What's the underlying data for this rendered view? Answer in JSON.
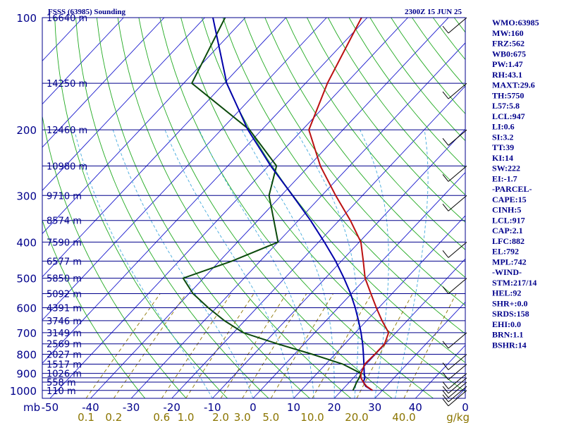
{
  "title_left": "FSSS (63985) Sounding",
  "title_right": "2300Z 15 JUN 25",
  "colors": {
    "frame": "#00008b",
    "isobar": "#00008b",
    "isotherm": "#1a1acd",
    "dry_adiabat": "#22aa22",
    "moist_adiabat": "#44aadd",
    "mixing_ratio": "#8b7500",
    "temperature": "#bb1111",
    "dewpoint": "#0b4a0b",
    "parcel": "#0000aa",
    "wind": "#000000"
  },
  "chart_data": {
    "type": "skew-t",
    "pressure_unit_label": "mb",
    "pressure_levels": [
      100,
      150,
      200,
      250,
      300,
      350,
      400,
      450,
      500,
      550,
      600,
      650,
      700,
      750,
      800,
      850,
      900,
      925,
      950,
      1000
    ],
    "pressure_tick_labels": [
      "100",
      "200",
      "300",
      "400",
      "500",
      "600",
      "700",
      "800",
      "900",
      "1000"
    ],
    "heights_labels": [
      "16640 m",
      "14250 m",
      "12460 m",
      "10980 m",
      "9710 m",
      "8574 m",
      "7590 m",
      "6577 m",
      "5850 m",
      "5092 m",
      "4391 m",
      "3746 m",
      "3149 m",
      "2569 m",
      "2027 m",
      "1517 m",
      "1026 m",
      "558 m",
      "110 m"
    ],
    "temperature_ticks": [
      "-50",
      "-40",
      "-30",
      "-20",
      "-10",
      "0",
      "10",
      "20",
      "30",
      "40",
      "0"
    ],
    "mixing_ratio_ticks": [
      "0.1",
      "0.2",
      "0.6",
      "1.0",
      "2.0",
      "3.0",
      "5.0",
      "10.0",
      "20.0",
      "40.0"
    ],
    "mixing_ratio_unit": "g/kg",
    "temperature_profile": [
      {
        "p": 1000,
        "t": 27.6
      },
      {
        "p": 975,
        "t": 25.2
      },
      {
        "p": 950,
        "t": 23.4
      },
      {
        "p": 925,
        "t": 21.8
      },
      {
        "p": 900,
        "t": 20.8
      },
      {
        "p": 850,
        "t": 19.6
      },
      {
        "p": 800,
        "t": 19.8
      },
      {
        "p": 750,
        "t": 19.8
      },
      {
        "p": 700,
        "t": 18.2
      },
      {
        "p": 650,
        "t": 13.8
      },
      {
        "p": 600,
        "t": 9.4
      },
      {
        "p": 550,
        "t": 4.8
      },
      {
        "p": 500,
        "t": -0.2
      },
      {
        "p": 450,
        "t": -4.6
      },
      {
        "p": 400,
        "t": -9.6
      },
      {
        "p": 350,
        "t": -17.2
      },
      {
        "p": 300,
        "t": -26.6
      },
      {
        "p": 250,
        "t": -37.2
      },
      {
        "p": 200,
        "t": -48.4
      },
      {
        "p": 150,
        "t": -54.6
      },
      {
        "p": 100,
        "t": -61.4
      }
    ],
    "dewpoint_profile": [
      {
        "p": 1000,
        "td": 22.8
      },
      {
        "p": 950,
        "td": 21.8
      },
      {
        "p": 925,
        "td": 21.4
      },
      {
        "p": 900,
        "td": 20.8
      },
      {
        "p": 850,
        "td": 14.2
      },
      {
        "p": 800,
        "td": 4.4
      },
      {
        "p": 750,
        "td": -6.6
      },
      {
        "p": 700,
        "td": -17.6
      },
      {
        "p": 650,
        "td": -25.0
      },
      {
        "p": 600,
        "td": -32.0
      },
      {
        "p": 550,
        "td": -39.0
      },
      {
        "p": 500,
        "td": -45.0
      },
      {
        "p": 450,
        "td": -37.0
      },
      {
        "p": 400,
        "td": -30.0
      },
      {
        "p": 300,
        "td": -43.0
      },
      {
        "p": 250,
        "td": -48.0
      },
      {
        "p": 200,
        "td": -63.0
      },
      {
        "p": 150,
        "td": -88.0
      },
      {
        "p": 100,
        "td": -95.0
      }
    ],
    "parcel_profile": [
      {
        "p": 1000,
        "t": 27.6
      },
      {
        "p": 975,
        "t": 25.0
      },
      {
        "p": 950,
        "t": 23.4
      },
      {
        "p": 925,
        "t": 22.8
      },
      {
        "p": 900,
        "t": 21.6
      },
      {
        "p": 850,
        "t": 19.4
      },
      {
        "p": 800,
        "t": 17.0
      },
      {
        "p": 750,
        "t": 14.4
      },
      {
        "p": 700,
        "t": 11.4
      },
      {
        "p": 650,
        "t": 8.0
      },
      {
        "p": 600,
        "t": 4.2
      },
      {
        "p": 550,
        "t": -0.2
      },
      {
        "p": 500,
        "t": -5.4
      },
      {
        "p": 450,
        "t": -11.4
      },
      {
        "p": 400,
        "t": -18.6
      },
      {
        "p": 350,
        "t": -27.0
      },
      {
        "p": 300,
        "t": -37.2
      },
      {
        "p": 250,
        "t": -49.4
      },
      {
        "p": 200,
        "t": -63.4
      },
      {
        "p": 150,
        "t": -79.4
      },
      {
        "p": 100,
        "t": -98.0
      }
    ],
    "wind_barbs": [
      {
        "p": 1000
      },
      {
        "p": 975
      },
      {
        "p": 950
      },
      {
        "p": 925
      },
      {
        "p": 900
      },
      {
        "p": 850
      },
      {
        "p": 800
      },
      {
        "p": 700
      },
      {
        "p": 500
      },
      {
        "p": 400
      },
      {
        "p": 300
      },
      {
        "p": 250
      },
      {
        "p": 200
      },
      {
        "p": 150
      },
      {
        "p": 100
      }
    ]
  },
  "indices": [
    "WMO:63985",
    "MW:160",
    "FRZ:562",
    "WB0:675",
    "PW:1.47",
    "RH:43.1",
    "MAXT:29.6",
    "TH:5750",
    "L57:5.8",
    "LCL:947",
    "LI:0.6",
    "SI:3.2",
    "TT:39",
    "KI:14",
    "SW:222",
    "EI:-1.7",
    "-PARCEL-",
    "CAPE:15",
    "CINH:5",
    "LCL:917",
    "CAP:2.1",
    "LFC:882",
    "EL:792",
    "MPL:742",
    "-WIND-",
    "STM:217/14",
    "HEL:92",
    "SHR+:0.0",
    "SRDS:158",
    "EHI:0.0",
    "BRN:1.1",
    "BSHR:14"
  ]
}
